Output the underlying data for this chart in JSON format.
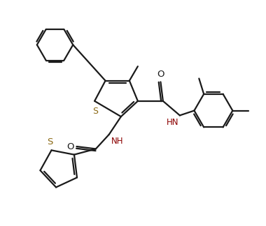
{
  "bg_color": "#ffffff",
  "line_color": "#1a1a1a",
  "s_color": "#8B6914",
  "nh_color": "#8b0000",
  "lw": 1.6,
  "figsize": [
    3.8,
    3.24
  ],
  "dpi": 100,
  "xlim": [
    -0.5,
    10.5
  ],
  "ylim": [
    -0.3,
    9.0
  ]
}
